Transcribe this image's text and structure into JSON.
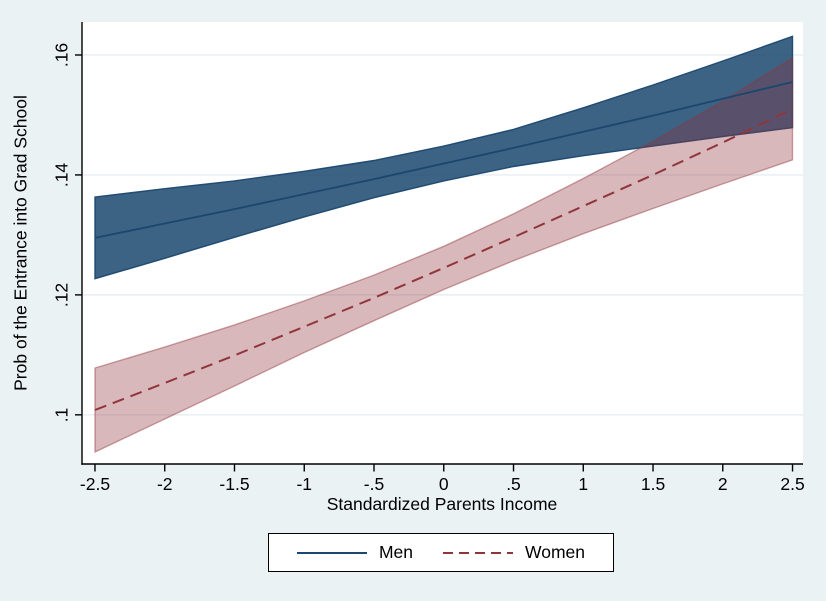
{
  "colors": {
    "background": "#eaf2f3",
    "plot_background": "#ffffff",
    "gridline": "#e6eef3",
    "axis_line": "#000000",
    "men_line": "#1a476f",
    "men_band_fill": "#1a476f",
    "men_band_opacity": 0.85,
    "women_line": "#90353b",
    "women_band_fill": "#90353b",
    "women_band_opacity": 0.35
  },
  "chart_data": {
    "type": "line",
    "title": "",
    "xlabel": "Standardized Parents Income",
    "ylabel": "Prob of the Entrance into Grad School",
    "grid": true,
    "legend_position": "bottom-center",
    "x": [
      -2.5,
      -2,
      -1.5,
      -1,
      -0.5,
      0,
      0.5,
      1,
      1.5,
      2,
      2.5
    ],
    "series": [
      {
        "name": "Men",
        "line_style": "solid",
        "values": [
          0.1295,
          0.1319,
          0.1343,
          0.1368,
          0.1393,
          0.1419,
          0.1445,
          0.1472,
          0.1499,
          0.1527,
          0.1555
        ],
        "ci_upper": [
          0.1363,
          0.1377,
          0.139,
          0.1406,
          0.1424,
          0.1448,
          0.1476,
          0.1512,
          0.155,
          0.159,
          0.1631
        ],
        "ci_lower": [
          0.1227,
          0.1261,
          0.1296,
          0.133,
          0.1362,
          0.139,
          0.1414,
          0.1432,
          0.1448,
          0.1464,
          0.1479
        ]
      },
      {
        "name": "Women",
        "line_style": "dashed",
        "values": [
          0.1008,
          0.1053,
          0.1099,
          0.1147,
          0.1195,
          0.1245,
          0.1296,
          0.1348,
          0.14,
          0.1454,
          0.151
        ],
        "ci_upper": [
          0.1078,
          0.1113,
          0.115,
          0.119,
          0.1233,
          0.1281,
          0.1335,
          0.1394,
          0.1456,
          0.1523,
          0.1595
        ],
        "ci_lower": [
          0.0938,
          0.0993,
          0.1048,
          0.1104,
          0.1157,
          0.1209,
          0.1257,
          0.1302,
          0.1344,
          0.1385,
          0.1425
        ]
      }
    ],
    "x_axis": {
      "min": -2.593,
      "max": 2.575,
      "ticks": [
        {
          "v": -2.5,
          "label": "-2.5"
        },
        {
          "v": -2,
          "label": "-2"
        },
        {
          "v": -1.5,
          "label": "-1.5"
        },
        {
          "v": -1,
          "label": "-1"
        },
        {
          "v": -0.5,
          "label": "-.5"
        },
        {
          "v": 0,
          "label": "0"
        },
        {
          "v": 0.5,
          "label": ".5"
        },
        {
          "v": 1,
          "label": "1"
        },
        {
          "v": 1.5,
          "label": "1.5"
        },
        {
          "v": 2,
          "label": "2"
        },
        {
          "v": 2.5,
          "label": "2.5"
        }
      ]
    },
    "y_axis": {
      "min": 0.0918,
      "max": 0.1655,
      "ticks": [
        {
          "v": 0.1,
          "label": ".1"
        },
        {
          "v": 0.12,
          "label": ".12"
        },
        {
          "v": 0.14,
          "label": ".14"
        },
        {
          "v": 0.16,
          "label": ".16"
        }
      ]
    }
  },
  "legend": {
    "items": [
      {
        "label": "Men"
      },
      {
        "label": "Women"
      }
    ]
  }
}
